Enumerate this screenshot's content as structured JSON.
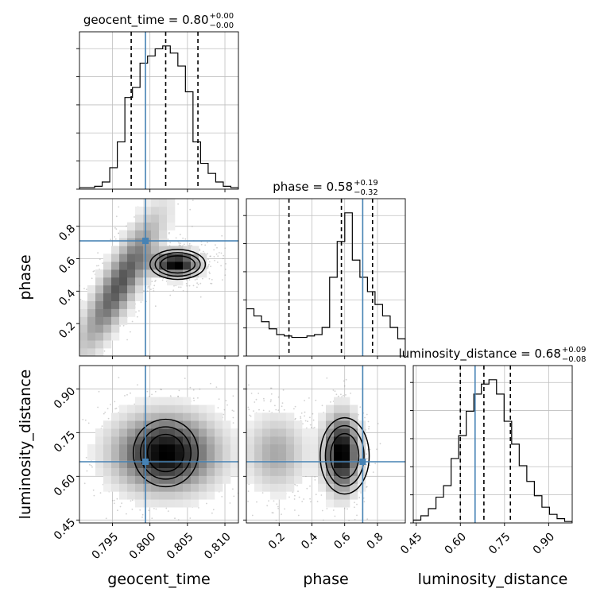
{
  "chart_data": {
    "type": "corner",
    "parameters": [
      "geocent_time",
      "phase",
      "luminosity_distance"
    ],
    "axis_labels": {
      "geocent_time": "geocent_time",
      "phase": "phase",
      "luminosity_distance": "luminosity_distance"
    },
    "titles": [
      {
        "param": "geocent_time",
        "prefix": "geocent_time = ",
        "median": "0.80",
        "plus": "+0.00",
        "minus": "−0.00"
      },
      {
        "param": "phase",
        "prefix": "phase = ",
        "median": "0.58",
        "plus": "+0.19",
        "minus": "−0.32"
      },
      {
        "param": "luminosity_distance",
        "prefix": "luminosity_distance = ",
        "median": "0.68",
        "plus": "+0.09",
        "minus": "−0.08"
      }
    ],
    "ranges": {
      "geocent_time": [
        0.7906,
        0.8118
      ],
      "phase": [
        0.0,
        0.97
      ],
      "luminosity_distance": [
        0.44,
        0.98
      ]
    },
    "ticks": {
      "geocent_time": [
        "0.795",
        "0.800",
        "0.805",
        "0.810"
      ],
      "phase": [
        "0.2",
        "0.4",
        "0.6",
        "0.8"
      ],
      "luminosity_distance": [
        "0.45",
        "0.60",
        "0.75",
        "0.90"
      ]
    },
    "truths": {
      "geocent_time": 0.7994,
      "phase": 0.71,
      "luminosity_distance": 0.65
    },
    "quantiles": {
      "geocent_time": [
        0.7975,
        0.8021,
        0.8064
      ],
      "phase": [
        0.26,
        0.58,
        0.77
      ],
      "luminosity_distance": [
        0.6,
        0.68,
        0.77
      ]
    },
    "histograms": {
      "geocent_time": [
        0.01,
        0.01,
        0.02,
        0.05,
        0.15,
        0.33,
        0.64,
        0.71,
        0.88,
        0.93,
        0.98,
        1.0,
        0.95,
        0.86,
        0.68,
        0.33,
        0.18,
        0.11,
        0.05,
        0.02,
        0.01
      ],
      "phase": [
        0.33,
        0.28,
        0.24,
        0.19,
        0.15,
        0.14,
        0.13,
        0.13,
        0.14,
        0.15,
        0.2,
        0.55,
        0.8,
        1.0,
        0.67,
        0.55,
        0.45,
        0.36,
        0.28,
        0.2,
        0.12
      ],
      "luminosity_distance": [
        0.02,
        0.05,
        0.1,
        0.18,
        0.26,
        0.45,
        0.61,
        0.78,
        0.9,
        0.97,
        1.0,
        0.9,
        0.71,
        0.55,
        0.4,
        0.29,
        0.19,
        0.11,
        0.06,
        0.03,
        0.01
      ]
    },
    "density_grid_on": true
  }
}
